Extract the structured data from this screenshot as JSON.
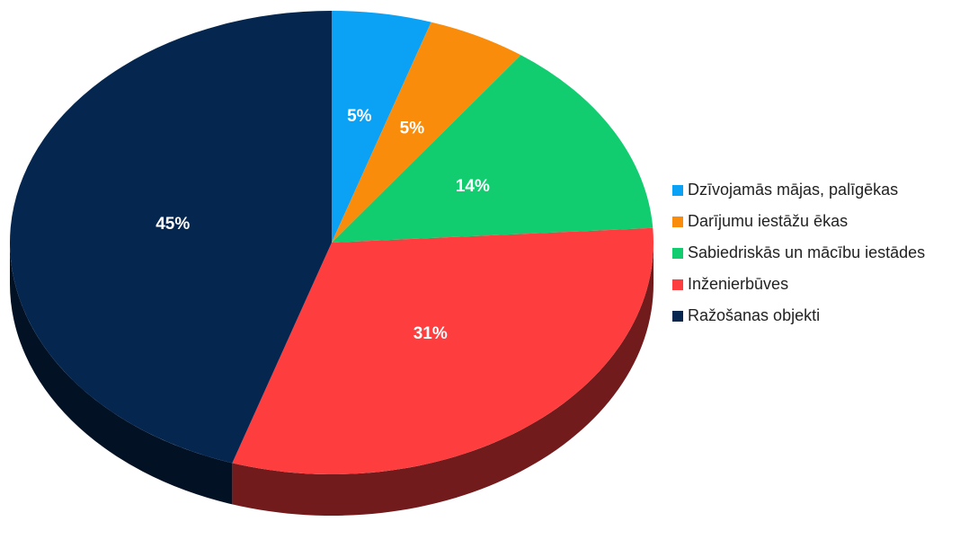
{
  "chart_data": {
    "type": "pie",
    "categories": [
      "Dzīvojamās mājas, palīgēkas",
      "Darījumu iestāžu ēkas",
      "Sabiedriskās un mācību iestādes",
      "Inženierbūves",
      "Ražošanas objekti"
    ],
    "values": [
      5,
      5,
      14,
      31,
      45
    ],
    "value_labels": [
      "5%",
      "5%",
      "14%",
      "31%",
      "45%"
    ],
    "colors": [
      "#0ba2f6",
      "#fa8c0c",
      "#12cd70",
      "#fe3d3f",
      "#05264f"
    ],
    "legend": "right"
  }
}
